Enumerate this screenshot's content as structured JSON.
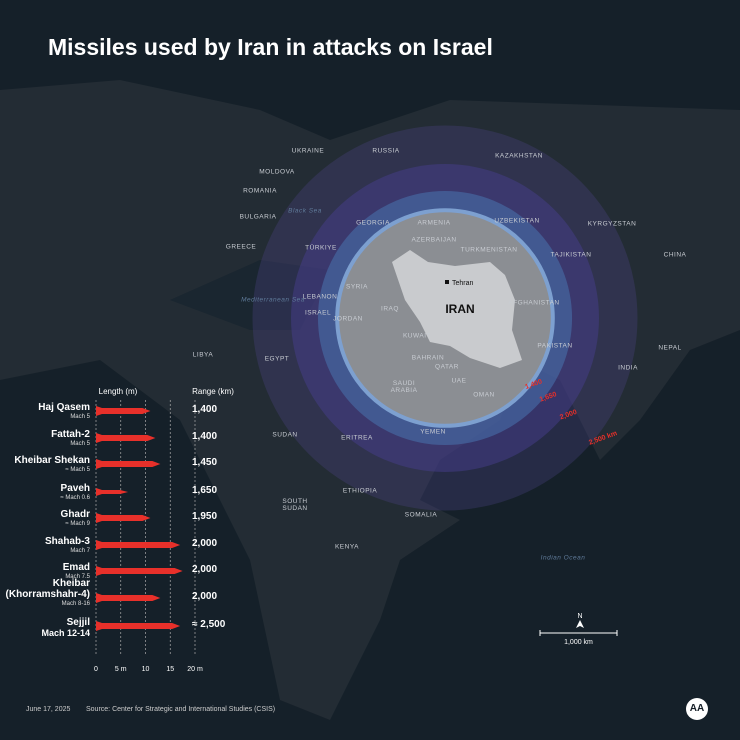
{
  "title": "Missiles used by Iran in attacks on Israel",
  "chart_data": {
    "type": "missile-bars",
    "length_header": "Length (m)",
    "range_header": "Range (km)",
    "categories": [
      "Haj Qasem",
      "Fattah-2",
      "Kheibar Shekan",
      "Paveh",
      "Ghadr",
      "Shahab-3",
      "Emad",
      "Kheibar\n(Khorramshahr-4)",
      "Sejjil"
    ],
    "speeds": [
      "Mach 5",
      "Mach 5",
      "≈ Mach 5",
      "≈ Mach 0.6",
      "≈ Mach 9",
      "Mach 7",
      "Mach 7.5",
      "Mach 8-16",
      "Mach 12-14"
    ],
    "values": [
      11,
      12,
      13,
      6.5,
      11,
      17,
      17.5,
      13,
      17
    ],
    "ranges": [
      "1,400",
      "1,400",
      "1,450",
      "1,650",
      "1,950",
      "2,000",
      "2,000",
      "2,000",
      "≈ 2,500"
    ],
    "color": "#e8302a",
    "xlim": [
      0,
      20
    ],
    "xticks": [
      0,
      {
        "value": 5,
        "label": "5 m"
      },
      10,
      15,
      {
        "value": 20,
        "label": "20 m"
      }
    ]
  },
  "map": {
    "center_label": "IRAN",
    "capital": "Tehran",
    "range_rings": [
      {
        "value": 1400,
        "label": "1,400"
      },
      {
        "value": 1650,
        "label": "1,650"
      },
      {
        "value": 2000,
        "label": "2,000"
      },
      {
        "value": 2500,
        "label": "2,500 km"
      }
    ],
    "scale_bar": {
      "value": 1000,
      "label": "1,000 km"
    },
    "north": "N",
    "labels": [
      "UKRAINE",
      "RUSSIA",
      "KAZAKHSTAN",
      "MOLDOVA",
      "ROMANIA",
      "Black Sea",
      "BULGARIA",
      "GEORGIA",
      "ARMENIA",
      "UZBEKISTAN",
      "KYRGYZSTAN",
      "GREECE",
      "TÜRKIYE",
      "AZERBAIJAN",
      "TURKMENISTAN",
      "TAJIKISTAN",
      "CHINA",
      "SYRIA",
      "LEBANON",
      "IRAQ",
      "AFGHANISTAN",
      "Mediterranean Sea",
      "ISRAEL",
      "JORDAN",
      "KUWAIT",
      "PAKISTAN",
      "NEPAL",
      "LIBYA",
      "EGYPT",
      "BAHRAIN",
      "QATAR",
      "INDIA",
      "UAE",
      "SAUDI\nARABIA",
      "OMAN",
      "SUDAN",
      "ERITREA",
      "YEMEN",
      "ETHIOPIA",
      "SOUTH\nSUDAN",
      "SOMALIA",
      "KENYA",
      "Indian Ocean"
    ]
  },
  "footer": {
    "date": "June 17, 2025",
    "source": "Source: Center for Strategic and International Studies (CSIS)",
    "logo": "AA"
  }
}
